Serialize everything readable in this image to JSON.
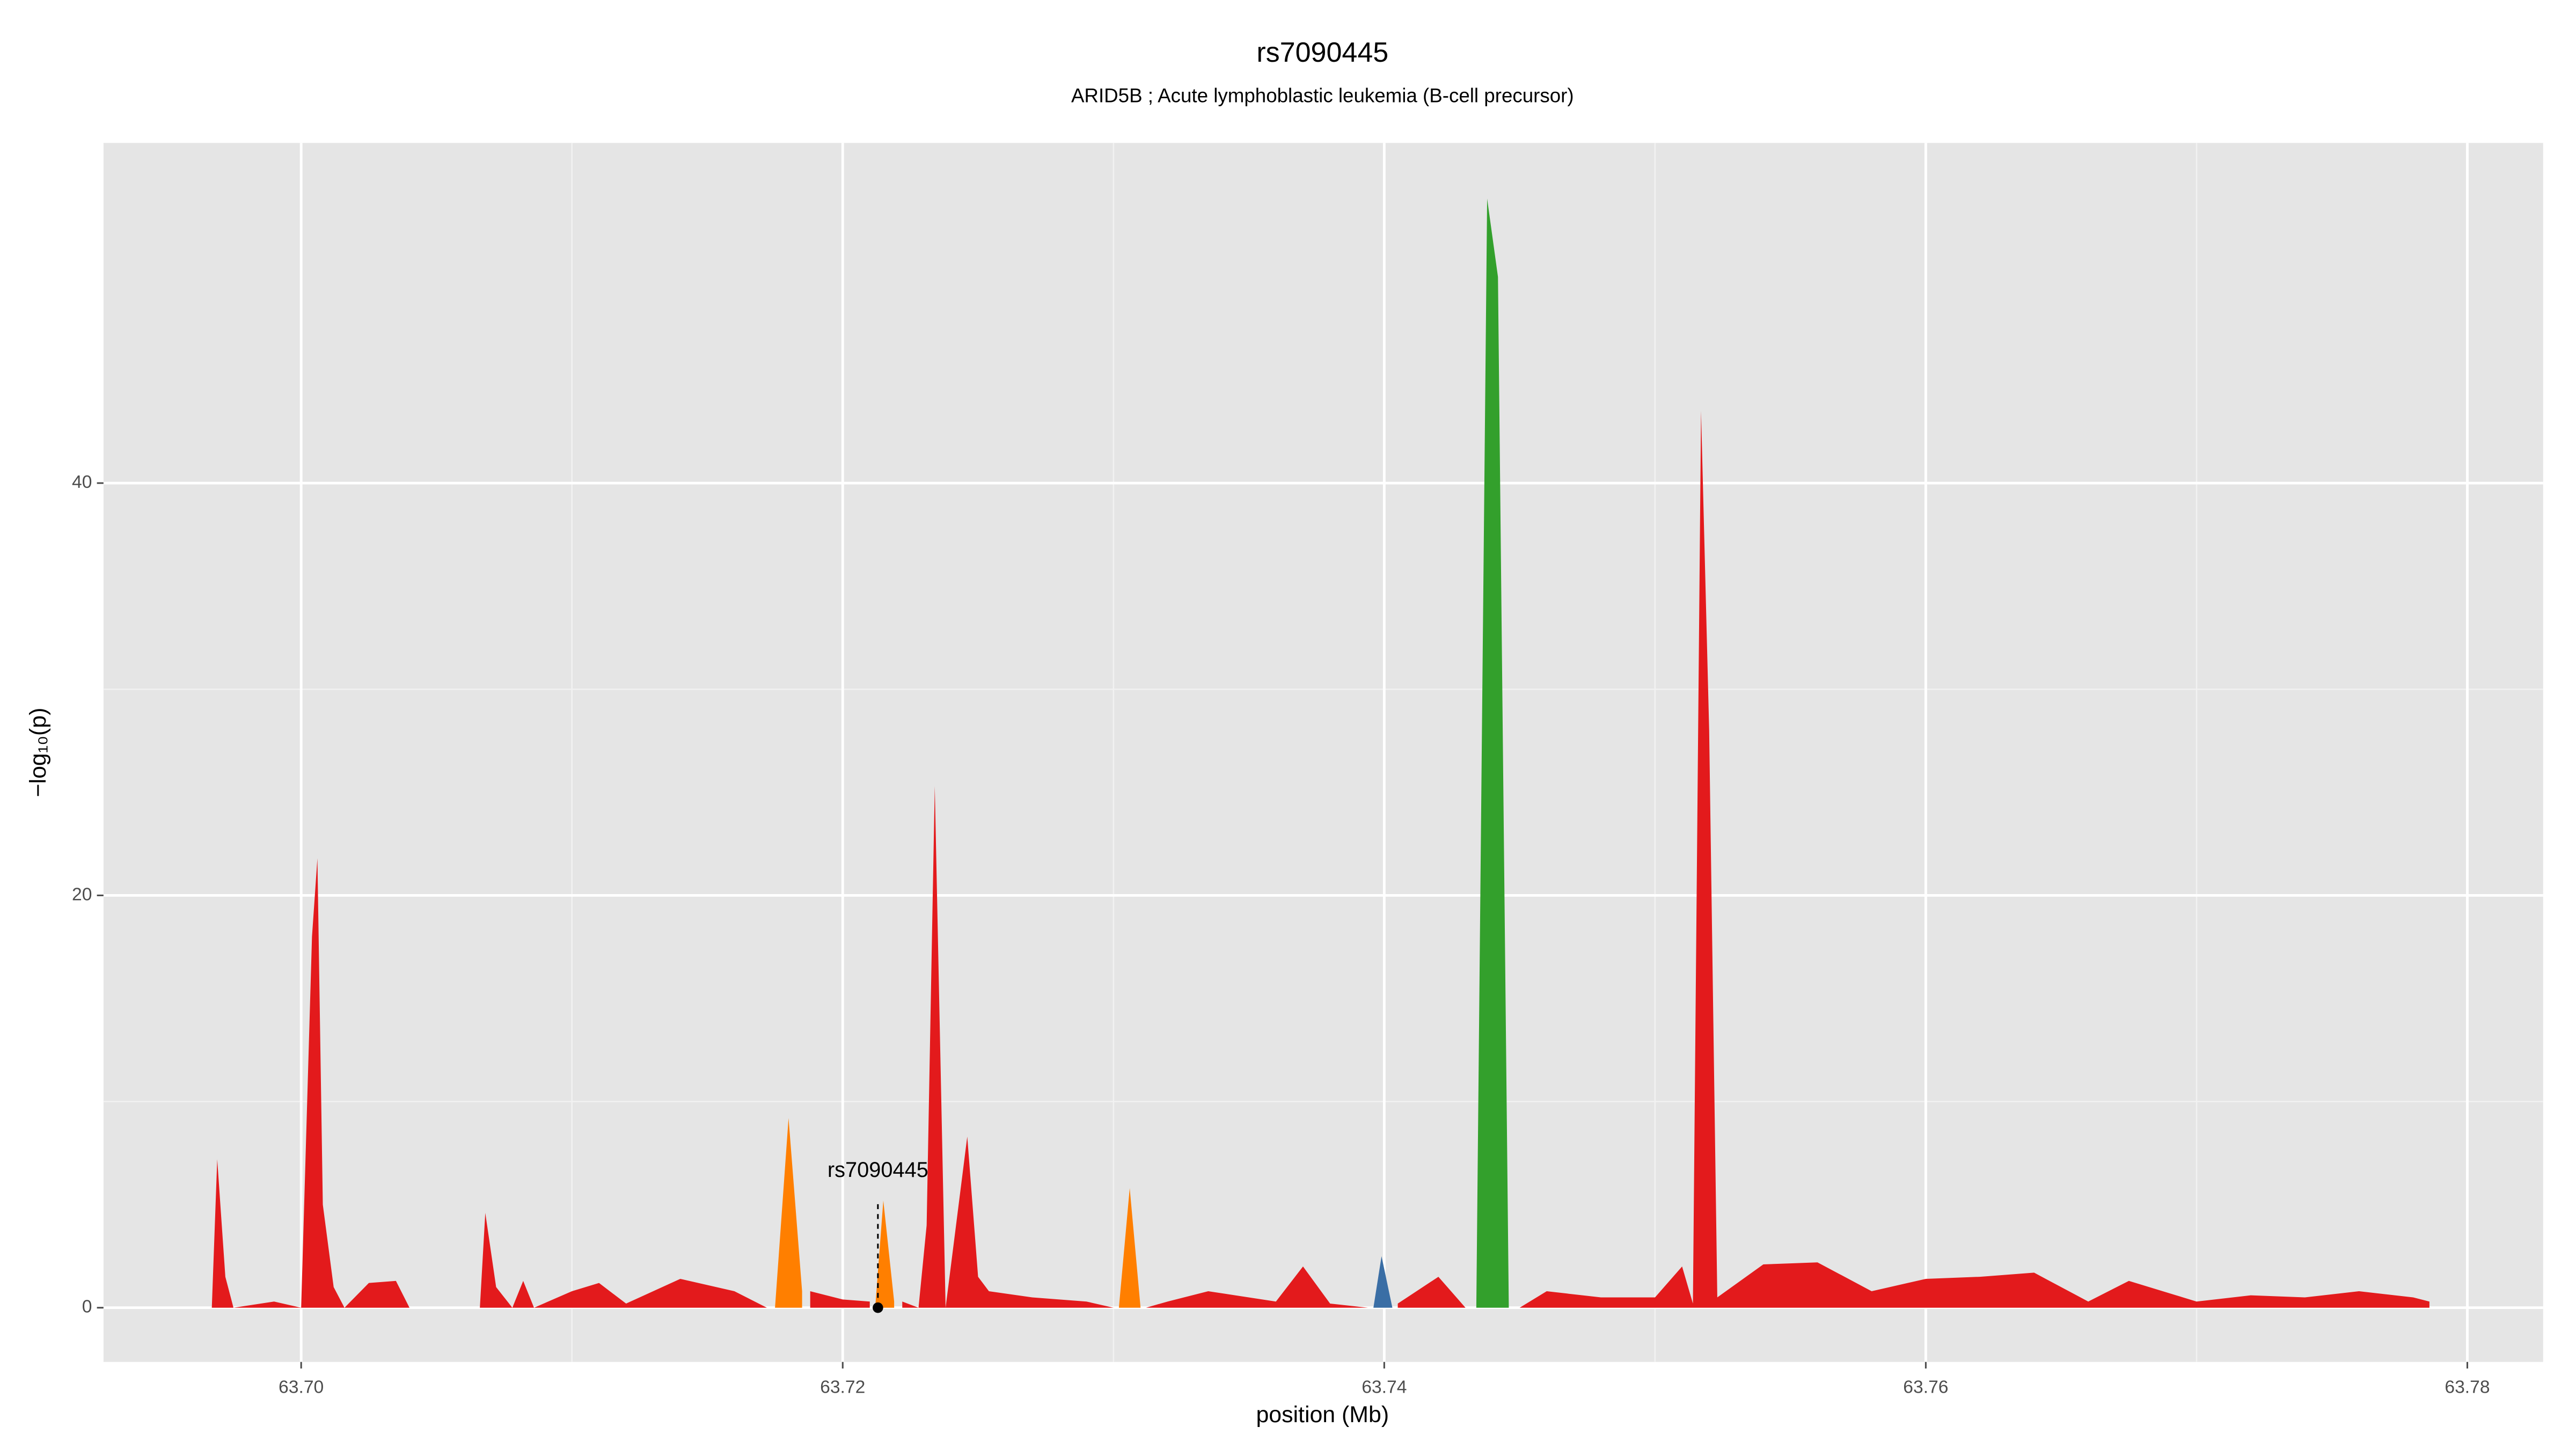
{
  "chart_data": {
    "type": "area",
    "title": "rs7090445",
    "subtitle": "ARID5B  ; Acute lymphoblastic leukemia (B-cell precursor)",
    "x_label": "position (Mb)",
    "y_label": "−log₁₀(p)",
    "x": [
      63.6967,
      63.6969,
      63.6972,
      63.6975,
      63.699,
      63.7,
      63.7004,
      63.7006,
      63.7008,
      63.7012,
      63.7016,
      63.7025,
      63.7035,
      63.704,
      63.7066,
      63.7068,
      63.7072,
      63.7078,
      63.7082,
      63.7086,
      63.71,
      63.711,
      63.712,
      63.714,
      63.716,
      63.7172,
      63.7175,
      63.718,
      63.7185,
      63.7188,
      63.72,
      63.721,
      63.7212,
      63.7215,
      63.7219,
      63.7222,
      63.7228,
      63.7231,
      63.7234,
      63.7238,
      63.7246,
      63.725,
      63.7254,
      63.727,
      63.729,
      63.73,
      63.7302,
      63.7306,
      63.731,
      63.7312,
      63.732,
      63.7335,
      63.736,
      63.737,
      63.738,
      63.7394,
      63.7396,
      63.7399,
      63.7403,
      63.7405,
      63.742,
      63.743,
      63.7434,
      63.7438,
      63.7442,
      63.7446,
      63.745,
      63.746,
      63.748,
      63.75,
      63.751,
      63.7514,
      63.7517,
      63.752,
      63.7523,
      63.754,
      63.756,
      63.758,
      63.76,
      63.762,
      63.764,
      63.766,
      63.7675,
      63.77,
      63.772,
      63.774,
      63.776,
      63.778,
      63.7786
    ],
    "series": [
      {
        "color": "#e31a1c",
        "values": [
          0,
          7.2,
          1.5,
          0,
          0.3,
          0,
          18,
          21.8,
          5,
          1,
          0,
          1.2,
          1.3,
          0,
          0,
          4.6,
          1,
          0,
          1.3,
          0,
          0.8,
          1.2,
          0.2,
          1.4,
          0.8,
          0,
          null,
          null,
          null,
          0.8,
          0.4,
          0.3,
          null,
          null,
          null,
          0.3,
          0,
          4,
          25.3,
          0,
          8.3,
          1.5,
          0.8,
          0.5,
          0.3,
          0,
          null,
          null,
          null,
          0,
          0.3,
          0.8,
          0.3,
          2,
          0.2,
          0,
          null,
          null,
          null,
          0.2,
          1.5,
          0,
          null,
          null,
          null,
          null,
          0,
          0.8,
          0.5,
          0.5,
          2,
          0.2,
          43.5,
          28,
          0.5,
          2.1,
          2.2,
          0.8,
          1.4,
          1.5,
          1.7,
          0.3,
          1.3,
          0.3,
          0.6,
          0.5,
          0.8,
          0.5,
          0.3
        ]
      },
      {
        "color": "#ff7f00",
        "values": [
          null,
          null,
          null,
          null,
          null,
          null,
          null,
          null,
          null,
          null,
          null,
          null,
          null,
          null,
          null,
          null,
          null,
          null,
          null,
          null,
          null,
          null,
          null,
          null,
          null,
          null,
          0,
          9.2,
          0.8,
          null,
          null,
          null,
          0,
          5.2,
          0.3,
          null,
          null,
          null,
          null,
          null,
          null,
          null,
          null,
          null,
          null,
          null,
          0,
          5.8,
          0,
          null,
          null,
          null,
          null,
          null,
          null,
          null,
          null,
          null,
          null,
          null,
          null,
          null,
          null,
          null,
          null,
          null,
          null,
          null,
          null,
          null,
          null,
          null,
          null,
          null,
          null,
          null,
          null,
          null,
          null,
          null,
          null,
          null,
          null,
          null,
          null,
          null,
          null,
          null,
          null
        ]
      },
      {
        "color": "#3a6ea5",
        "values": [
          null,
          null,
          null,
          null,
          null,
          null,
          null,
          null,
          null,
          null,
          null,
          null,
          null,
          null,
          null,
          null,
          null,
          null,
          null,
          null,
          null,
          null,
          null,
          null,
          null,
          null,
          null,
          null,
          null,
          null,
          null,
          null,
          null,
          null,
          null,
          null,
          null,
          null,
          null,
          null,
          null,
          null,
          null,
          null,
          null,
          null,
          null,
          null,
          null,
          null,
          null,
          null,
          null,
          null,
          null,
          null,
          0,
          2.5,
          0,
          null,
          null,
          null,
          null,
          null,
          null,
          null,
          null,
          null,
          null,
          null,
          null,
          null,
          null,
          null,
          null,
          null,
          null,
          null,
          null,
          null,
          null,
          null,
          null,
          null,
          null,
          null,
          null,
          null,
          null
        ]
      },
      {
        "color": "#33a02c",
        "values": [
          null,
          null,
          null,
          null,
          null,
          null,
          null,
          null,
          null,
          null,
          null,
          null,
          null,
          null,
          null,
          null,
          null,
          null,
          null,
          null,
          null,
          null,
          null,
          null,
          null,
          null,
          null,
          null,
          null,
          null,
          null,
          null,
          null,
          null,
          null,
          null,
          null,
          null,
          null,
          null,
          null,
          null,
          null,
          null,
          null,
          null,
          null,
          null,
          null,
          null,
          null,
          null,
          null,
          null,
          null,
          null,
          null,
          null,
          null,
          null,
          null,
          null,
          0,
          53.8,
          50,
          0,
          null,
          null,
          null,
          null,
          null,
          null,
          null,
          null,
          null,
          null,
          null,
          null,
          null,
          null,
          null,
          null,
          null,
          null,
          null,
          null,
          null,
          null,
          null
        ]
      }
    ],
    "annotation": {
      "label": "rs7090445",
      "x": 63.7213,
      "y": 0
    },
    "xlim": [
      63.6927,
      63.7828
    ],
    "ylim": [
      -2.63,
      56.5
    ],
    "xticks": [
      {
        "value": 63.7,
        "label": "63.70"
      },
      63.72,
      63.74,
      63.76,
      63.78
    ],
    "yticks": [
      0,
      20,
      40
    ],
    "grid": true
  }
}
